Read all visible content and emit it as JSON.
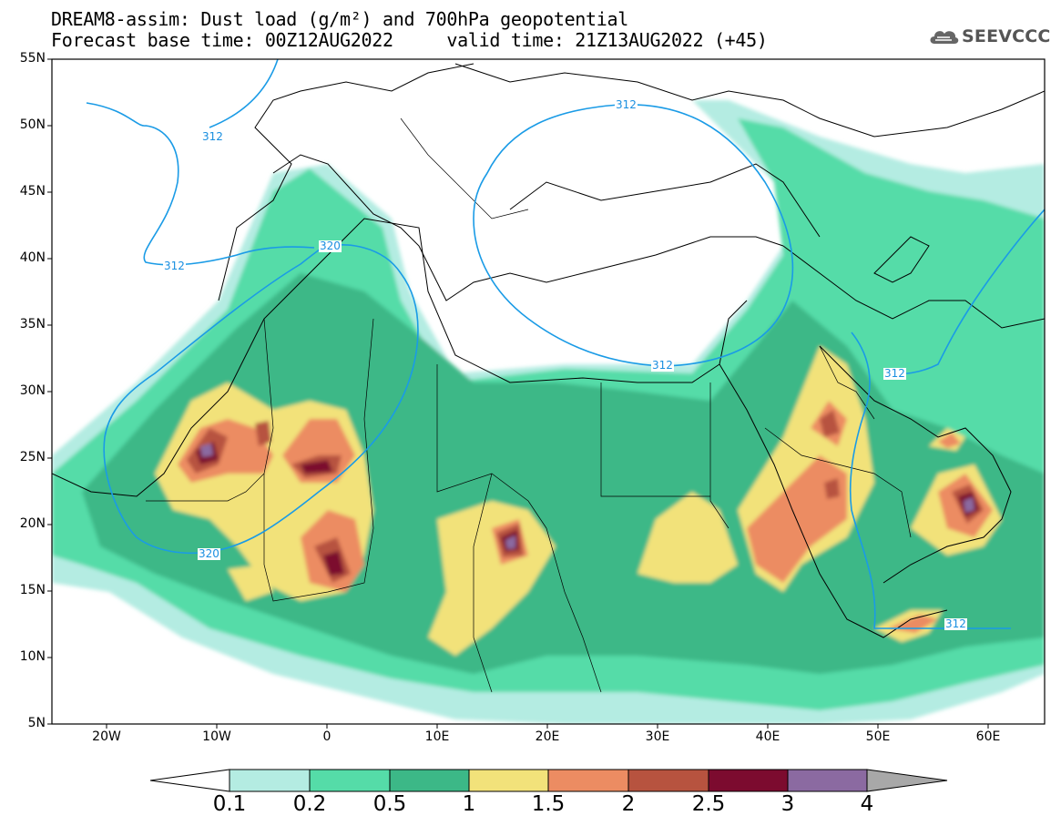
{
  "title": {
    "line1": "DREAM8-assim: Dust load (g/m²) and 700hPa geopotential",
    "line2": "Forecast base time: 00Z12AUG2022     valid time: 21Z13AUG2022 (+45)"
  },
  "logo": {
    "text": "SEEVCCC",
    "icon": "cloud-logo-icon"
  },
  "map": {
    "lon_range": [
      -25,
      65
    ],
    "lat_range": [
      5,
      55
    ],
    "lat_ticks": [
      "55N",
      "50N",
      "45N",
      "40N",
      "35N",
      "30N",
      "25N",
      "20N",
      "15N",
      "10N",
      "5N"
    ],
    "lon_ticks": [
      "20W",
      "10W",
      "0",
      "10E",
      "20E",
      "30E",
      "40E",
      "50E",
      "60E"
    ],
    "contour_color": "#1a9be6",
    "contour_labels": [
      "312",
      "312",
      "312",
      "312",
      "312",
      "312",
      "320",
      "320"
    ]
  },
  "colorbar": {
    "labels": [
      "0.1",
      "0.2",
      "0.5",
      "1",
      "1.5",
      "2",
      "2.5",
      "3",
      "4"
    ],
    "colors": [
      "#b4ece2",
      "#55dca8",
      "#3cb887",
      "#f2e27a",
      "#ec8c62",
      "#b7533f",
      "#7c0b2f",
      "#8b6aa1"
    ],
    "low_color": "#ffffff",
    "high_color": "#a8a8a8"
  }
}
